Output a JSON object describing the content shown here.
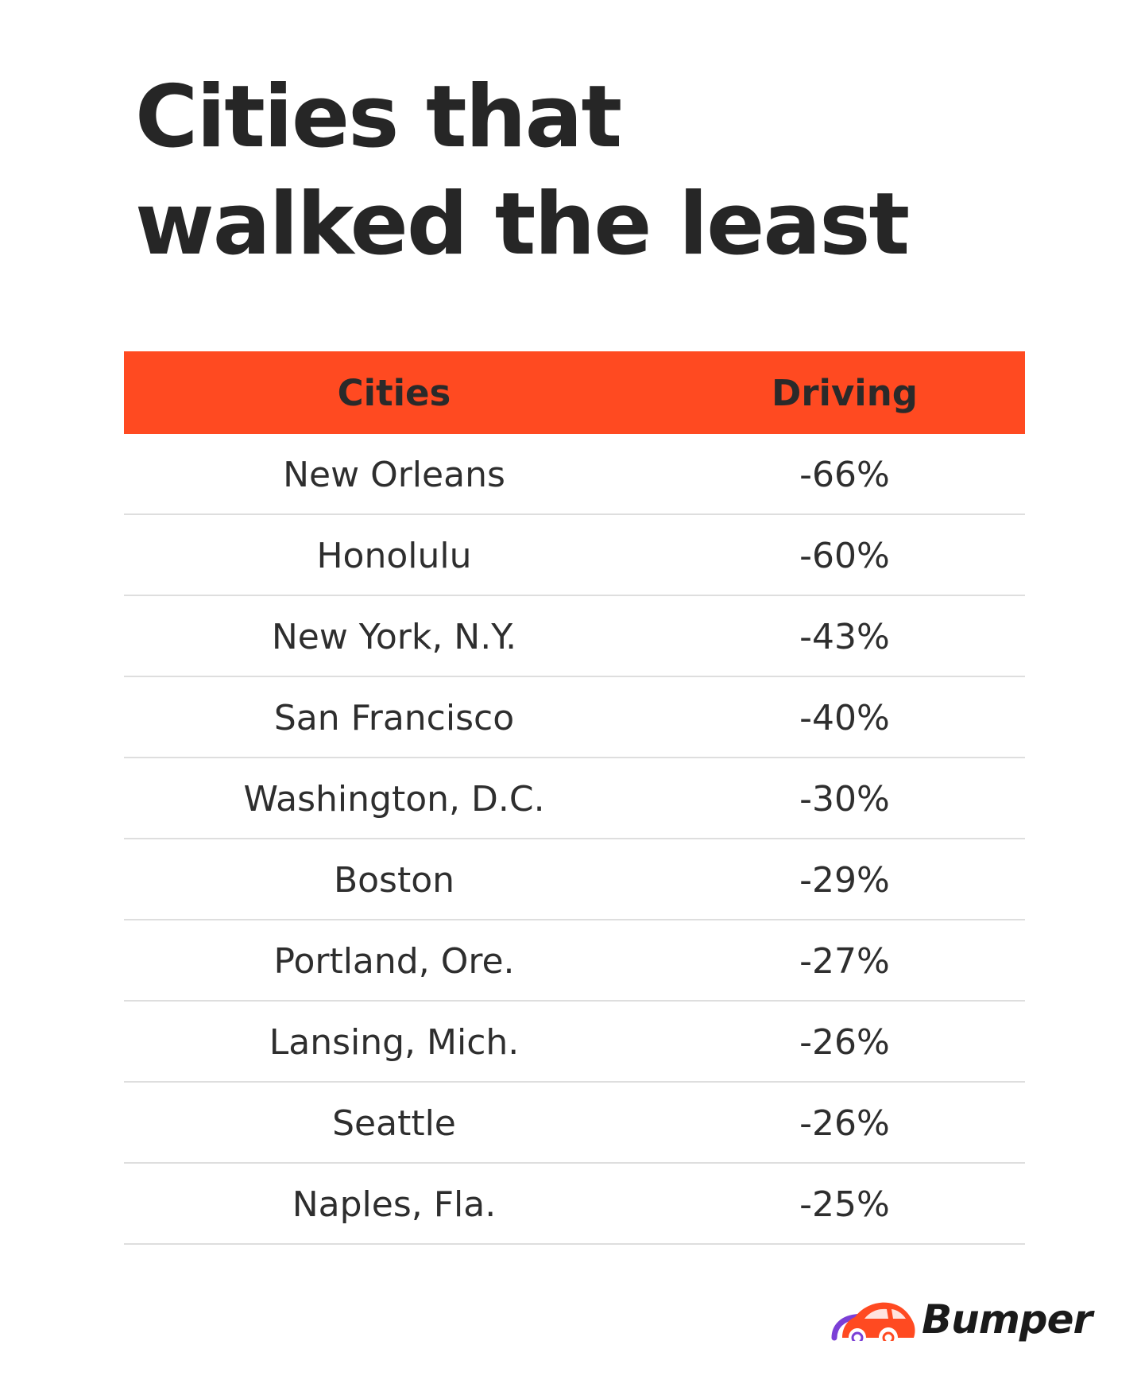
{
  "title": "Cities that walked the least",
  "table": {
    "headers": [
      "Cities",
      "Driving"
    ],
    "rows": [
      {
        "city": "New Orleans",
        "driving": "-66%"
      },
      {
        "city": "Honolulu",
        "driving": "-60%"
      },
      {
        "city": "New York, N.Y.",
        "driving": "-43%"
      },
      {
        "city": "San Francisco",
        "driving": "-40%"
      },
      {
        "city": "Washington, D.C.",
        "driving": "-30%"
      },
      {
        "city": "Boston",
        "driving": "-29%"
      },
      {
        "city": "Portland, Ore.",
        "driving": "-27%"
      },
      {
        "city": "Lansing, Mich.",
        "driving": "-26%"
      },
      {
        "city": "Seattle",
        "driving": "-26%"
      },
      {
        "city": "Naples, Fla.",
        "driving": "-25%"
      }
    ]
  },
  "chart_data": {
    "type": "table",
    "title": "Cities that walked the least",
    "columns": [
      "Cities",
      "Driving"
    ],
    "categories": [
      "New Orleans",
      "Honolulu",
      "New York, N.Y.",
      "San Francisco",
      "Washington, D.C.",
      "Boston",
      "Portland, Ore.",
      "Lansing, Mich.",
      "Seattle",
      "Naples, Fla."
    ],
    "values": [
      -66,
      -60,
      -43,
      -40,
      -30,
      -29,
      -27,
      -26,
      -26,
      -25
    ]
  },
  "brand": {
    "name": "Bumper",
    "logo_icon": "car-icon"
  },
  "colors": {
    "header_background": "#ff4a21",
    "row_divider": "#dedede",
    "logo_purple": "#7b3fd6",
    "logo_red": "#ff4a21"
  }
}
